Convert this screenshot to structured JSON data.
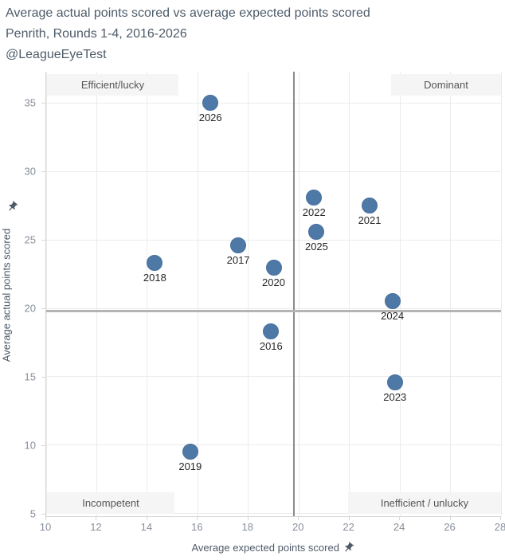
{
  "header": {
    "title_line1": "Average actual points scored vs average expected points scored",
    "title_line2": "Penrith, Rounds 1-4, 2016-2026",
    "title_line3": "@LeagueEyeTest"
  },
  "chart_data": {
    "type": "scatter",
    "title": "Average actual points scored vs average expected points scored",
    "subtitle": "Penrith, Rounds 1-4, 2016-2026",
    "attribution": "@LeagueEyeTest",
    "xlabel": "Average expected points scored",
    "ylabel": "Average actual points scored",
    "xlim": [
      10,
      28
    ],
    "ylim": [
      4.8,
      37.3
    ],
    "x_ticks": [
      10,
      12,
      14,
      16,
      18,
      20,
      22,
      24,
      26,
      28
    ],
    "y_ticks": [
      5,
      10,
      15,
      20,
      25,
      30,
      35
    ],
    "grid": true,
    "legend": "none",
    "points": [
      {
        "label": "2016",
        "x": 18.9,
        "y": 18.3
      },
      {
        "label": "2017",
        "x": 17.6,
        "y": 24.6
      },
      {
        "label": "2018",
        "x": 14.3,
        "y": 23.3
      },
      {
        "label": "2019",
        "x": 15.7,
        "y": 9.5
      },
      {
        "label": "2020",
        "x": 19.0,
        "y": 23.0
      },
      {
        "label": "2021",
        "x": 22.8,
        "y": 27.5
      },
      {
        "label": "2022",
        "x": 20.6,
        "y": 28.1
      },
      {
        "label": "2023",
        "x": 23.8,
        "y": 14.6
      },
      {
        "label": "2024",
        "x": 23.7,
        "y": 20.5
      },
      {
        "label": "2025",
        "x": 20.7,
        "y": 25.6
      },
      {
        "label": "2026",
        "x": 16.5,
        "y": 35.0
      }
    ],
    "reference_lines": {
      "x": 19.8,
      "y": 19.8
    },
    "quadrants": {
      "top_left": "Efficient/lucky",
      "top_right": "Dominant",
      "bottom_left": "Incompetent",
      "bottom_right": "Inefficient / unlucky"
    },
    "colors": {
      "point_fill": "#4e79a7",
      "title_text": "#4e5c6a",
      "tick_text": "#878f9b",
      "quadrant_bg": "#f5f5f5",
      "quadrant_text": "#565656",
      "gridline": "#ebebeb",
      "ref_line_vertical": "#8c8c8c",
      "ref_line_horizontal": "#b4b4b4",
      "pin_icon": "#4e5a68"
    }
  }
}
